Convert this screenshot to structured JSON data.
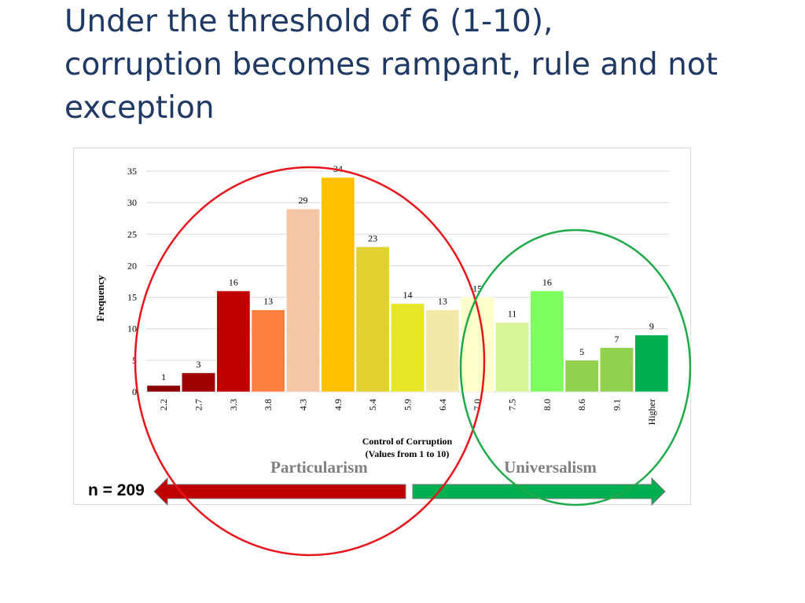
{
  "slide": {
    "title_lines": [
      "Under the threshold of 6 (1-10),",
      "corruption becomes rampant, rule and not",
      "exception"
    ],
    "n_label": "n = 209"
  },
  "annotations": {
    "left_region_label": "Particularism",
    "right_region_label": "Universalism",
    "left_arrow_color": "#c00000",
    "right_arrow_color": "#00b050",
    "left_circle_color": "#e8141b",
    "right_circle_color": "#1faa4a"
  },
  "chart_data": {
    "type": "bar",
    "categories": [
      "2.2",
      "2.7",
      "3.3",
      "3.8",
      "4.3",
      "4.9",
      "5.4",
      "5.9",
      "6.4",
      "7.0",
      "7.5",
      "8.0",
      "8.6",
      "9.1",
      "Higher"
    ],
    "values": [
      1,
      3,
      16,
      13,
      29,
      34,
      23,
      14,
      13,
      15,
      11,
      16,
      5,
      7,
      9
    ],
    "bar_colors": [
      "#8b0000",
      "#a00000",
      "#c00000",
      "#ff7f3f",
      "#f5c6a6",
      "#ffc000",
      "#e0d030",
      "#e6e628",
      "#f2e8a8",
      "#ffffcc",
      "#d9f59a",
      "#80ff60",
      "#92d050",
      "#92d050",
      "#00b050"
    ],
    "xlabel": "Control of Corruption\n(Values from 1 to 10)",
    "ylabel": "Frequency",
    "ylim": [
      0,
      35
    ],
    "yticks": [
      0,
      5,
      10,
      15,
      20,
      25,
      30,
      35
    ],
    "grid": true
  }
}
